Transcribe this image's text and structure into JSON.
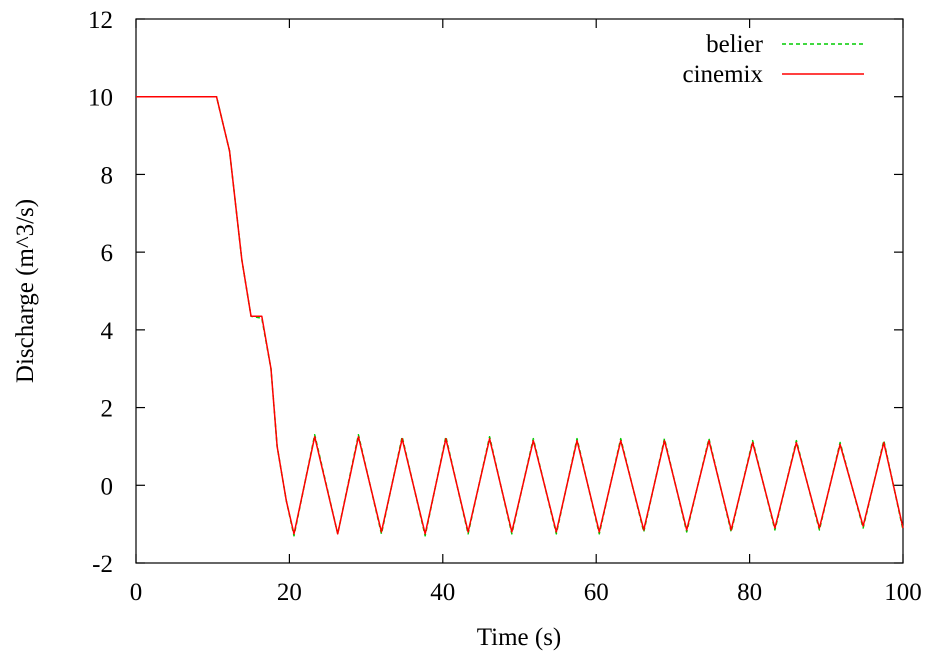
{
  "chart_data": {
    "type": "line",
    "title": "",
    "xlabel": "Time (s)",
    "ylabel": "Discharge (m^3/s)",
    "xlim": [
      0,
      100
    ],
    "ylim": [
      -2,
      12
    ],
    "xticks": [
      0,
      20,
      40,
      60,
      80,
      100
    ],
    "yticks": [
      -2,
      0,
      2,
      4,
      6,
      8,
      10,
      12
    ],
    "grid": false,
    "legend_position": "top-right",
    "series": [
      {
        "name": "belier",
        "color": "#00cc00",
        "style": "dashed",
        "x": [
          0,
          10.5,
          12.2,
          13.8,
          15.0,
          16.4,
          17.6,
          18.4,
          19.6,
          20.6,
          23.3,
          26.3,
          29.0,
          32.0,
          34.7,
          37.7,
          40.4,
          43.3,
          46.1,
          49.0,
          51.8,
          54.8,
          57.5,
          60.4,
          63.2,
          66.2,
          68.9,
          71.8,
          74.7,
          77.6,
          80.4,
          83.3,
          86.1,
          89.1,
          91.8,
          94.8,
          97.5,
          100
        ],
        "y": [
          10.0,
          10.0,
          8.6,
          5.8,
          4.35,
          4.3,
          3.0,
          1.0,
          -0.4,
          -1.3,
          1.3,
          -1.25,
          1.3,
          -1.25,
          1.25,
          -1.3,
          1.25,
          -1.25,
          1.25,
          -1.25,
          1.2,
          -1.25,
          1.2,
          -1.25,
          1.2,
          -1.2,
          1.2,
          -1.2,
          1.2,
          -1.2,
          1.15,
          -1.15,
          1.15,
          -1.15,
          1.1,
          -1.1,
          1.15,
          -1.15
        ]
      },
      {
        "name": "cinemix",
        "color": "#ff0000",
        "style": "solid",
        "x": [
          0,
          10.5,
          12.2,
          13.8,
          15.0,
          16.4,
          17.6,
          18.4,
          19.6,
          20.6,
          23.3,
          26.3,
          29.0,
          32.0,
          34.7,
          37.7,
          40.4,
          43.3,
          46.1,
          49.0,
          51.8,
          54.8,
          57.5,
          60.4,
          63.2,
          66.2,
          68.9,
          71.8,
          74.7,
          77.6,
          80.4,
          83.3,
          86.1,
          89.1,
          91.8,
          94.8,
          97.5,
          100
        ],
        "y": [
          10.0,
          10.0,
          8.6,
          5.8,
          4.35,
          4.35,
          3.0,
          1.0,
          -0.4,
          -1.25,
          1.25,
          -1.25,
          1.25,
          -1.2,
          1.2,
          -1.25,
          1.2,
          -1.2,
          1.2,
          -1.2,
          1.15,
          -1.2,
          1.15,
          -1.2,
          1.15,
          -1.15,
          1.15,
          -1.15,
          1.15,
          -1.15,
          1.1,
          -1.1,
          1.1,
          -1.1,
          1.05,
          -1.05,
          1.1,
          -1.1
        ]
      }
    ]
  }
}
